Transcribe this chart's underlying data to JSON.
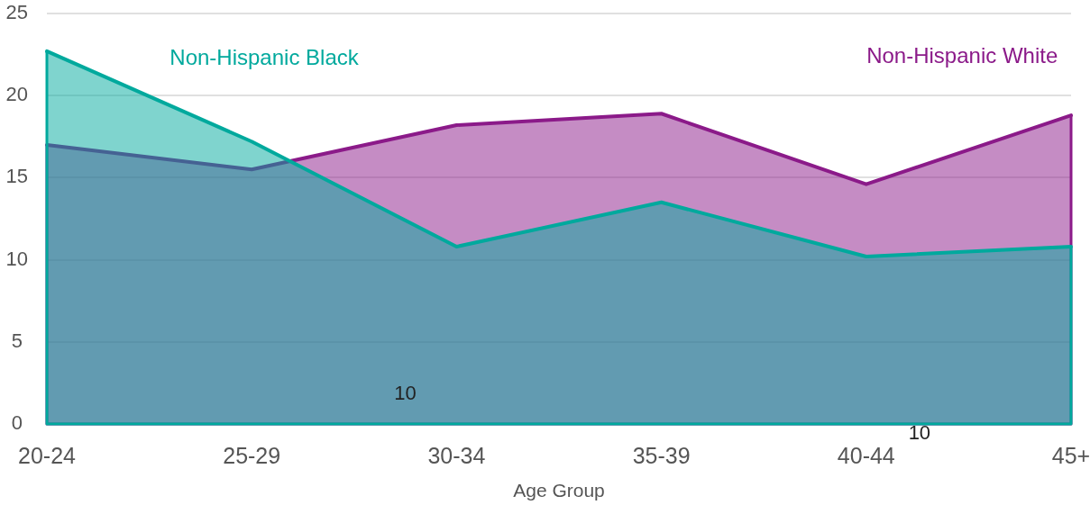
{
  "chart_data": {
    "type": "area",
    "categories": [
      "20-24",
      "25-29",
      "30-34",
      "35-39",
      "40-44",
      "45+"
    ],
    "xlabel": "Age Group",
    "series": [
      {
        "name": "Non-Hispanic Black",
        "color": "#00a99d",
        "values": [
          22.7,
          17.2,
          10.8,
          13.5,
          10.2,
          10.8
        ]
      },
      {
        "name": "Non-Hispanic White",
        "color": "#8b1a89",
        "values": [
          17.0,
          15.5,
          18.2,
          18.9,
          14.6,
          18.8
        ]
      }
    ],
    "ylim": [
      0,
      25
    ],
    "yticks": [
      0,
      5,
      10,
      15,
      20,
      25
    ],
    "grid": "y",
    "annotations": [
      "10",
      "10"
    ]
  }
}
